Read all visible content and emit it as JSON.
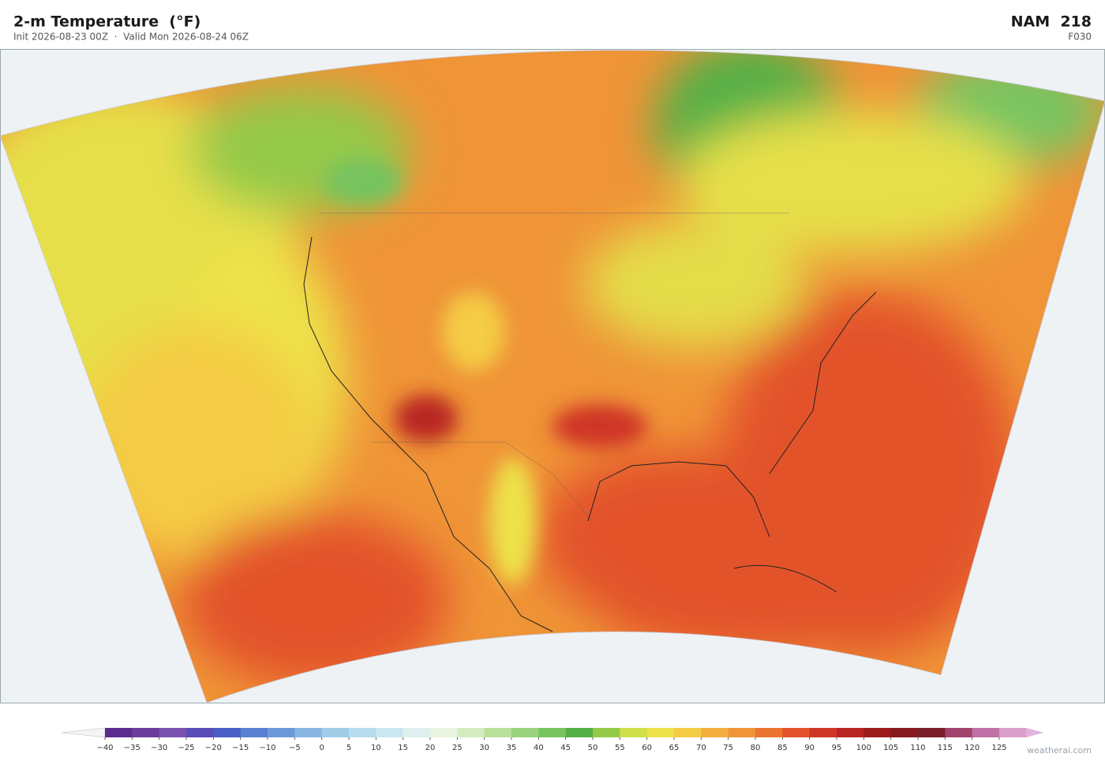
{
  "header": {
    "title": "2-m Temperature  (°F)",
    "subtitle": "Init 2026-08-23 00Z  ·  Valid Mon 2026-08-24 06Z",
    "model": "NAM  218",
    "forecast_hour": "F030"
  },
  "colorbar": {
    "ticks": [
      {
        "value": -40,
        "label": "−40"
      },
      {
        "value": -35,
        "label": "−35"
      },
      {
        "value": -30,
        "label": "−30"
      },
      {
        "value": -25,
        "label": "−25"
      },
      {
        "value": -20,
        "label": "−20"
      },
      {
        "value": -15,
        "label": "−15"
      },
      {
        "value": -10,
        "label": "−10"
      },
      {
        "value": -5,
        "label": "−5"
      },
      0,
      5,
      10,
      15,
      20,
      25,
      30,
      35,
      40,
      45,
      50,
      55,
      60,
      65,
      70,
      75,
      80,
      85,
      90,
      95,
      100,
      105,
      110,
      115,
      120,
      125
    ],
    "colors": [
      "#5b2d8e",
      "#6c3e9c",
      "#7a52ae",
      "#5a4cb8",
      "#4a5ec8",
      "#5a80d2",
      "#6c9ad8",
      "#88b6e0",
      "#a0cce8",
      "#b6dcee",
      "#cae7f0",
      "#def0ee",
      "#e9f5e2",
      "#d4ecc0",
      "#bae09c",
      "#9ad27e",
      "#78c460",
      "#52b046",
      "#95c94a",
      "#cfe04a",
      "#ede24a",
      "#f4cc45",
      "#f3b040",
      "#ef9437",
      "#eb7431",
      "#e3522a",
      "#cf3626",
      "#b82522",
      "#9c1c1e",
      "#861a1e",
      "#7a1e2a",
      "#a0446e",
      "#c071a6",
      "#d9a0cc"
    ],
    "under_color": "#f4f4f4",
    "over_color": "#e2b4dc"
  },
  "watermark": "weatherai.com"
}
